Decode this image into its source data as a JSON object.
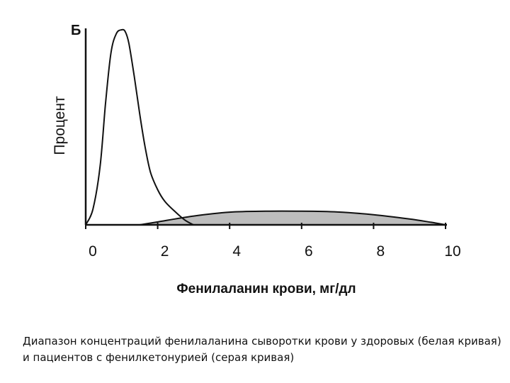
{
  "chart_data": {
    "type": "area",
    "panel_label": "Б",
    "title": "",
    "xlabel": "Фенилаланин крови, мг/дл",
    "ylabel": "Процент",
    "xlim": [
      0,
      10
    ],
    "ylim": [
      0,
      100
    ],
    "x_ticks": [
      "0",
      "2",
      "4",
      "6",
      "8",
      "10"
    ],
    "grid": false,
    "series": [
      {
        "fill": "#ffffff",
        "stroke": "#111111",
        "points": [
          [
            0,
            0
          ],
          [
            0.2,
            8
          ],
          [
            0.4,
            30
          ],
          [
            0.55,
            62
          ],
          [
            0.7,
            88
          ],
          [
            0.85,
            98
          ],
          [
            1.0,
            100
          ],
          [
            1.1,
            99
          ],
          [
            1.2,
            93
          ],
          [
            1.35,
            76
          ],
          [
            1.5,
            57
          ],
          [
            1.65,
            40
          ],
          [
            1.8,
            27
          ],
          [
            2.0,
            18
          ],
          [
            2.2,
            12
          ],
          [
            2.5,
            6.5
          ],
          [
            2.75,
            2.5
          ],
          [
            2.95,
            0.4
          ],
          [
            3.0,
            0
          ]
        ]
      },
      {
        "fill": "#bdbdbd",
        "stroke": "#111111",
        "points": [
          [
            1.5,
            0
          ],
          [
            2.0,
            1.5
          ],
          [
            3.0,
            4.5
          ],
          [
            4.0,
            6.5
          ],
          [
            5.0,
            7.0
          ],
          [
            6.0,
            7.0
          ],
          [
            7.0,
            6.6
          ],
          [
            8.0,
            5.2
          ],
          [
            9.0,
            3.0
          ],
          [
            9.6,
            1.3
          ],
          [
            10.0,
            0
          ]
        ]
      }
    ]
  },
  "caption": "Диапазон концентраций фенилаланина сыворотки крови у здоровых (белая кривая) и пациентов с фенилкетонурией (серая кривая)"
}
